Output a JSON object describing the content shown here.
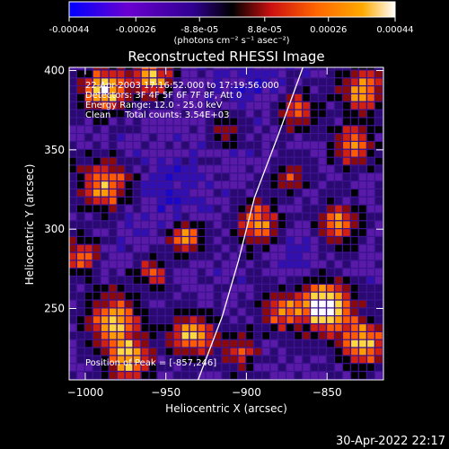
{
  "colorbar": {
    "tick_labels": [
      "-0.00044",
      "-0.00026",
      "-8.8e-05",
      "8.8e-05",
      "0.00026",
      "0.00044"
    ],
    "tick_values": [
      -0.00044,
      -0.00026,
      -8.8e-05,
      8.8e-05,
      0.00026,
      0.00044
    ],
    "range": [
      -0.00044,
      0.00044
    ],
    "units_label": "(photons cm⁻² s⁻¹ asec⁻²)",
    "colormap": [
      "#0000ff",
      "#6a00d0",
      "#300090",
      "#000000",
      "#cc1010",
      "#ff6600",
      "#ffaa00",
      "#ffffff"
    ]
  },
  "chart_data": {
    "type": "heatmap",
    "title": "Reconstructed RHESSI Image",
    "xlabel": "Heliocentric X (arcsec)",
    "ylabel": "Heliocentric Y (arcsec)",
    "xlim": [
      -1010,
      -815
    ],
    "ylim": [
      205,
      402
    ],
    "x_ticks": [
      -1000,
      -950,
      -900,
      -850
    ],
    "x_tick_labels": [
      "−1000",
      "−950",
      "−900",
      "−850"
    ],
    "y_ticks": [
      250,
      300,
      350,
      400
    ],
    "y_tick_labels": [
      "250",
      "300",
      "350",
      "400"
    ],
    "limb_curve": [
      [
        -930,
        205
      ],
      [
        -915,
        245
      ],
      [
        -905,
        280
      ],
      [
        -895,
        320
      ],
      [
        -880,
        360
      ],
      [
        -865,
        402
      ]
    ],
    "peak_position": [
      -857,
      246
    ],
    "annotations": [
      "22-Apr-2003 17:16:52.000 to 17:19:56.000",
      "Detectors: 3F 4F 5F 6F 7F 8F, Att 0",
      "Energy Range: 12.0 - 25.0 keV",
      "Clean     Total counts: 3.54E+03"
    ],
    "peak_label": "Position of Peak = [-857,246]"
  },
  "footer": {
    "timestamp": "30-Apr-2022 22:17"
  }
}
